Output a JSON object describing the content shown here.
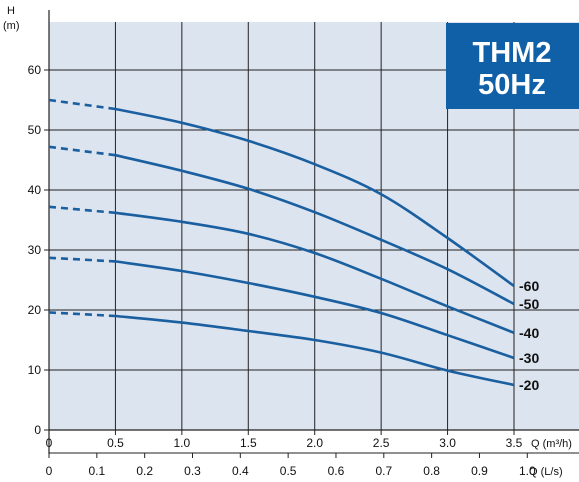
{
  "chart_data": {
    "type": "line",
    "badge": {
      "line1": "THM2",
      "line2": "50Hz",
      "color": "#1060a8"
    },
    "colors": {
      "plot_bg": "#dce4ef",
      "curve": "#1a5fa0",
      "grid": "#222222"
    },
    "y_axis": {
      "label_top": "H",
      "label_unit": "(m)",
      "ticks": [
        "0",
        "10",
        "20",
        "30",
        "40",
        "50",
        "60"
      ],
      "ylim": [
        0,
        68
      ]
    },
    "x_axis_q": {
      "ticks": [
        "0",
        "0.5",
        "1.0",
        "1.5",
        "2.0",
        "2.5",
        "3.0",
        "3.5"
      ],
      "unit_label": "Q (m³/h)",
      "xlim": [
        0,
        3.6
      ]
    },
    "x_axis_ls": {
      "ticks": [
        "0",
        "0.1",
        "0.2",
        "0.3",
        "0.4",
        "0.5",
        "0.6",
        "0.7",
        "0.8",
        "0.9",
        "1.0"
      ],
      "unit_label": "Q (L/s)"
    },
    "grid": true,
    "series": [
      {
        "name": "-60",
        "dashed": [
          [
            0,
            55
          ],
          [
            0.5,
            53.5
          ]
        ],
        "values": [
          [
            0.5,
            53.5
          ],
          [
            1.0,
            51.2
          ],
          [
            1.5,
            48.2
          ],
          [
            2.0,
            44.3
          ],
          [
            2.5,
            39.3
          ],
          [
            3.0,
            32.0
          ],
          [
            3.5,
            24.0
          ]
        ]
      },
      {
        "name": "-50",
        "dashed": [
          [
            0,
            47.2
          ],
          [
            0.5,
            45.8
          ]
        ],
        "values": [
          [
            0.5,
            45.8
          ],
          [
            1.0,
            43.2
          ],
          [
            1.5,
            40.2
          ],
          [
            2.0,
            36.3
          ],
          [
            2.5,
            31.7
          ],
          [
            3.0,
            26.8
          ],
          [
            3.5,
            21.0
          ]
        ]
      },
      {
        "name": "-40",
        "dashed": [
          [
            0,
            37.2
          ],
          [
            0.5,
            36.2
          ]
        ],
        "values": [
          [
            0.5,
            36.2
          ],
          [
            1.0,
            34.7
          ],
          [
            1.5,
            32.7
          ],
          [
            2.0,
            29.5
          ],
          [
            2.5,
            25.2
          ],
          [
            3.0,
            20.6
          ],
          [
            3.5,
            16.2
          ]
        ]
      },
      {
        "name": "-30",
        "dashed": [
          [
            0,
            28.7
          ],
          [
            0.5,
            28.1
          ]
        ],
        "values": [
          [
            0.5,
            28.1
          ],
          [
            1.0,
            26.5
          ],
          [
            1.5,
            24.5
          ],
          [
            2.0,
            22.2
          ],
          [
            2.5,
            19.5
          ],
          [
            3.0,
            15.8
          ],
          [
            3.5,
            12.0
          ]
        ]
      },
      {
        "name": "-20",
        "dashed": [
          [
            0,
            19.6
          ],
          [
            0.5,
            19.0
          ]
        ],
        "values": [
          [
            0.5,
            19.0
          ],
          [
            1.0,
            17.9
          ],
          [
            1.5,
            16.5
          ],
          [
            2.0,
            15.0
          ],
          [
            2.5,
            12.9
          ],
          [
            3.0,
            9.9
          ],
          [
            3.5,
            7.5
          ]
        ]
      }
    ]
  }
}
